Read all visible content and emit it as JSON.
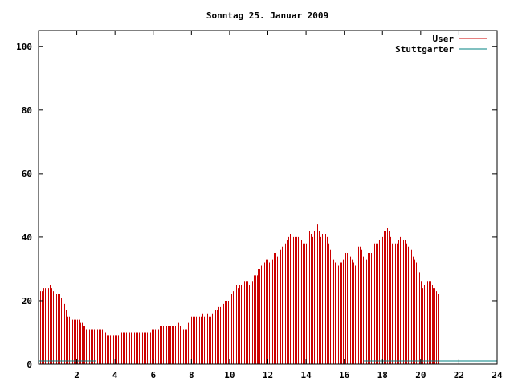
{
  "chart_data": {
    "type": "bar",
    "title": "Sonntag 25. Januar 2009",
    "xlabel": "",
    "ylabel": "",
    "xlim": [
      0,
      24
    ],
    "ylim": [
      0,
      105
    ],
    "x_ticks": [
      "2",
      "4",
      "6",
      "8",
      "10",
      "12",
      "14",
      "16",
      "18",
      "20",
      "22",
      "24"
    ],
    "y_ticks": [
      "0",
      "20",
      "40",
      "60",
      "80",
      "100"
    ],
    "grid": false,
    "legend_position": "top-right",
    "sample_step_hours": 0.0833,
    "series": [
      {
        "name": "User",
        "color": "#cc0000",
        "values": [
          23,
          23,
          23,
          24,
          24,
          24,
          24,
          25,
          24,
          23,
          22,
          22,
          22,
          22,
          21,
          20,
          19,
          17,
          15,
          15,
          15,
          14,
          14,
          14,
          14,
          14,
          13,
          13,
          12,
          12,
          11,
          10,
          11,
          11,
          11,
          11,
          11,
          11,
          11,
          11,
          11,
          11,
          10,
          9,
          9,
          9,
          9,
          9,
          9,
          9,
          9,
          9,
          10,
          10,
          10,
          10,
          10,
          10,
          10,
          10,
          10,
          10,
          10,
          10,
          10,
          10,
          10,
          10,
          10,
          10,
          10,
          11,
          11,
          11,
          11,
          11,
          12,
          12,
          12,
          12,
          12,
          12,
          12,
          12,
          12,
          12,
          12,
          12,
          13,
          12,
          12,
          11,
          11,
          11,
          13,
          13,
          15,
          15,
          15,
          15,
          15,
          15,
          15,
          16,
          15,
          15,
          16,
          15,
          15,
          16,
          17,
          17,
          17,
          18,
          18,
          18,
          19,
          20,
          20,
          20,
          21,
          22,
          23,
          25,
          25,
          24,
          25,
          25,
          24,
          26,
          26,
          26,
          25,
          25,
          26,
          28,
          28,
          28,
          30,
          30,
          31,
          32,
          32,
          33,
          33,
          32,
          32,
          33,
          35,
          35,
          34,
          36,
          36,
          37,
          37,
          38,
          39,
          40,
          41,
          41,
          40,
          40,
          40,
          40,
          40,
          39,
          38,
          38,
          38,
          38,
          42,
          41,
          40,
          42,
          44,
          44,
          42,
          40,
          41,
          42,
          41,
          40,
          38,
          36,
          34,
          33,
          32,
          31,
          31,
          32,
          32,
          33,
          33,
          35,
          35,
          35,
          34,
          33,
          32,
          31,
          34,
          37,
          37,
          36,
          34,
          33,
          33,
          35,
          35,
          35,
          36,
          38,
          38,
          38,
          39,
          39,
          40,
          42,
          42,
          43,
          42,
          40,
          38,
          38,
          38,
          38,
          39,
          40,
          39,
          39,
          39,
          38,
          37,
          36,
          36,
          34,
          33,
          32,
          29,
          29,
          26,
          24,
          25,
          26,
          26,
          26,
          26,
          25,
          24,
          24,
          23,
          22
        ]
      },
      {
        "name": "Stuttgarter",
        "color": "#008080",
        "segments": [
          [
            0,
            3.0,
            1
          ],
          [
            17.0,
            24,
            1
          ]
        ]
      }
    ]
  }
}
